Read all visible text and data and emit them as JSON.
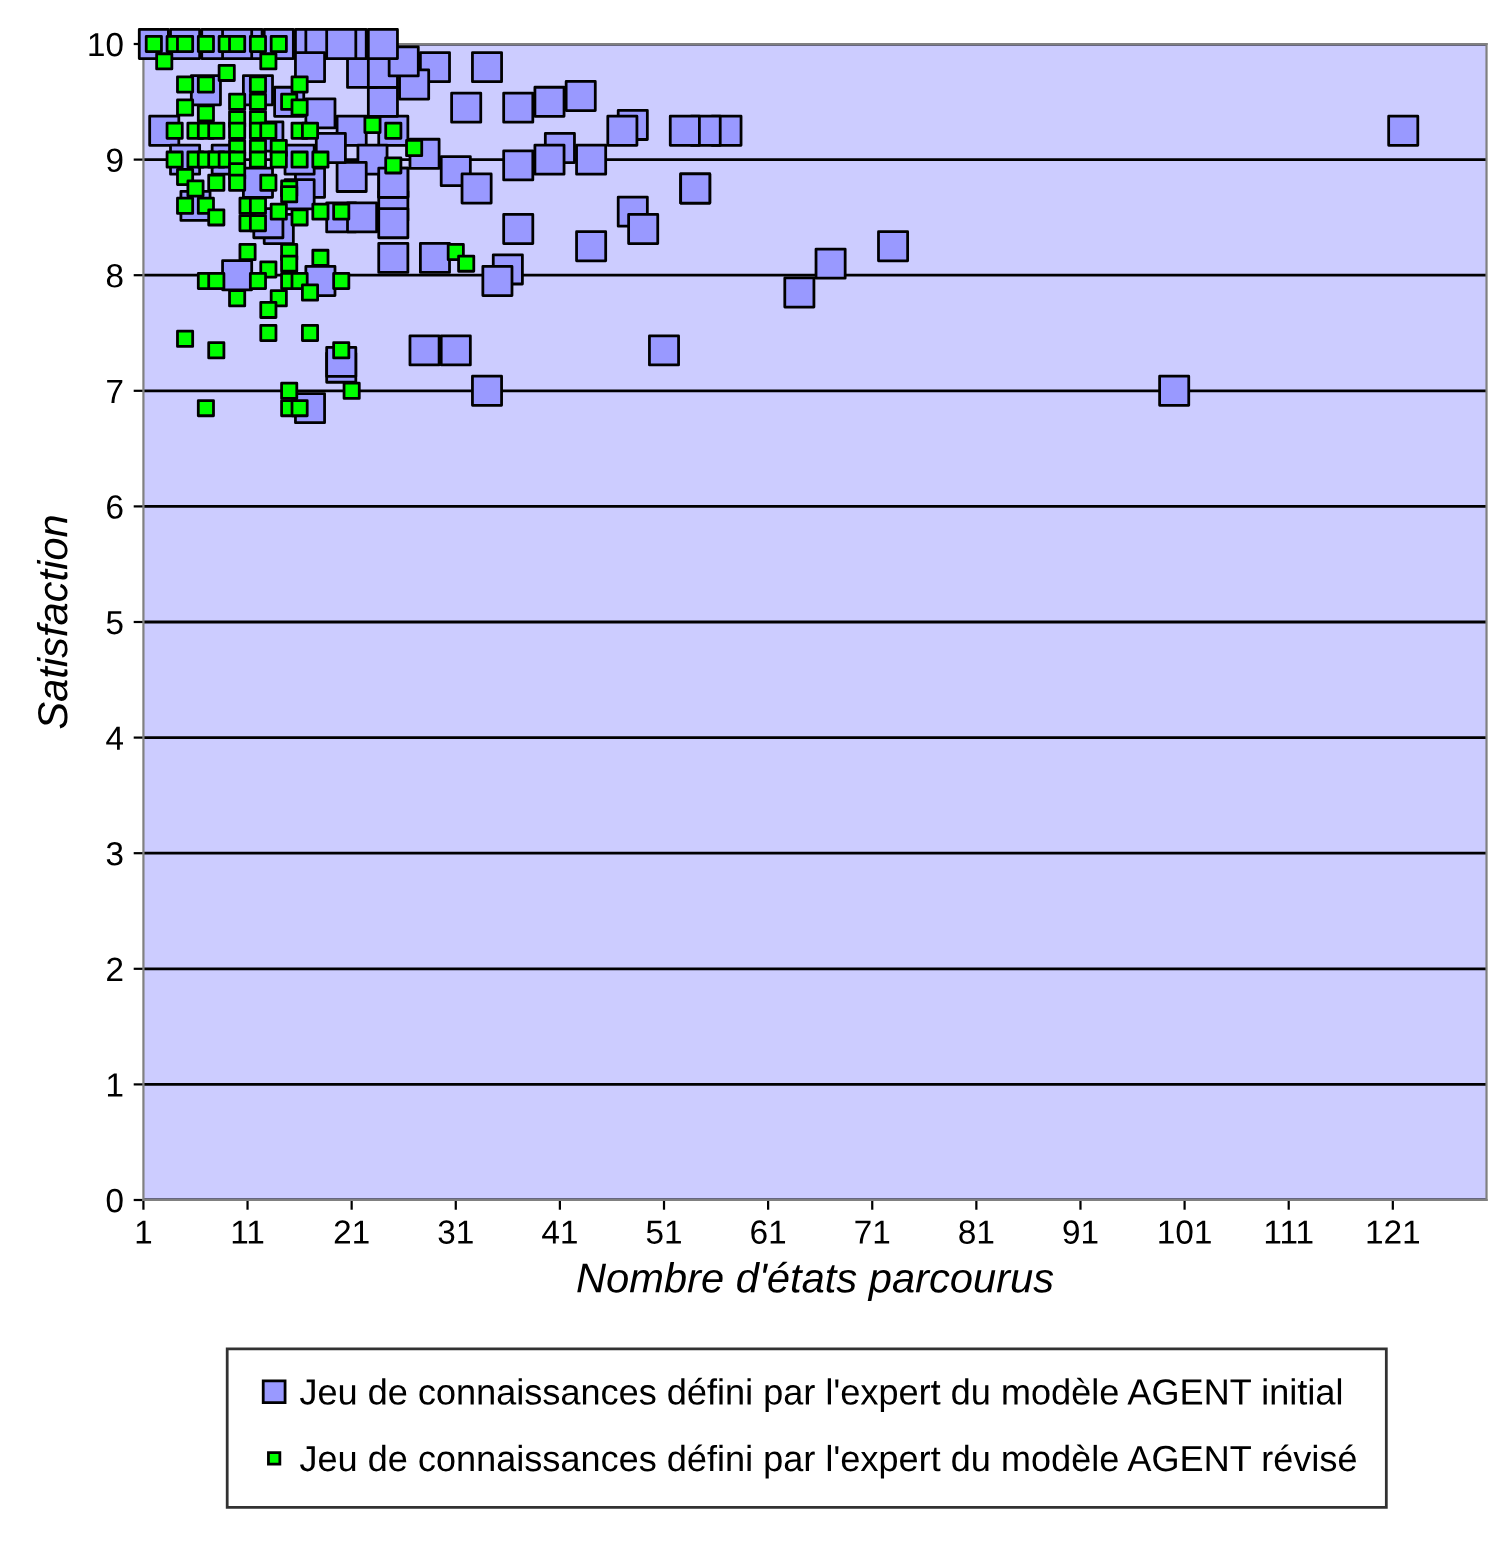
{
  "chart_data": {
    "type": "scatter",
    "xlabel": "Nombre d'états parcourus",
    "ylabel": "Satisfaction",
    "xlim": [
      1,
      130
    ],
    "ylim": [
      0,
      10
    ],
    "xticks": [
      1,
      11,
      21,
      31,
      41,
      51,
      61,
      71,
      81,
      91,
      101,
      111,
      121
    ],
    "yticks": [
      0,
      1,
      2,
      3,
      4,
      5,
      6,
      7,
      8,
      9,
      10
    ],
    "grid": "y",
    "legend": "bottom",
    "marker": "square",
    "series": [
      {
        "name": "Jeu de connaissances défini par l'expert du modèle AGENT initial",
        "color": "#9999ff",
        "x": [
          122,
          100,
          73,
          67,
          64,
          54,
          57,
          55,
          53,
          34,
          29,
          32,
          37,
          40,
          43,
          48,
          47,
          41,
          44,
          40,
          37,
          31,
          33,
          54,
          48,
          49,
          37,
          44,
          36,
          35,
          29,
          25,
          28,
          31,
          51,
          34,
          20,
          25,
          25,
          25,
          25,
          27,
          24,
          22,
          24,
          26,
          21,
          23,
          21,
          20,
          22,
          21,
          24,
          2,
          5,
          8,
          11,
          14,
          17,
          18,
          20,
          17,
          28,
          25,
          17,
          14,
          13,
          10,
          18,
          10,
          20,
          17,
          3,
          5,
          6,
          7,
          9,
          12,
          12,
          13,
          15,
          16,
          18,
          19,
          16
        ],
        "values": [
          9.25,
          7,
          8.25,
          8.1,
          7.85,
          8.75,
          9.25,
          9.25,
          9.25,
          9.8,
          9.8,
          9.45,
          9.45,
          9.5,
          9.55,
          9.3,
          9.25,
          9.1,
          9,
          9,
          8.95,
          8.9,
          8.75,
          8.75,
          8.55,
          8.4,
          8.4,
          8.25,
          8.05,
          7.95,
          8.15,
          8.15,
          7.35,
          7.35,
          7.35,
          7,
          7.2,
          8.6,
          8.45,
          8.8,
          9.25,
          9.65,
          9.5,
          9.75,
          9.75,
          9.85,
          9.25,
          9,
          8.85,
          8.5,
          8.5,
          10,
          10,
          10,
          10,
          10,
          10,
          10,
          10,
          10,
          10,
          9.8,
          9.05,
          8.8,
          8.8,
          8.4,
          8.45,
          8,
          7.95,
          10,
          7.25,
          6.85,
          9.25,
          9,
          8.6,
          9.6,
          9,
          9.6,
          8.8,
          9.2,
          9.5,
          9,
          9.4,
          9.1,
          8.7
        ]
      },
      {
        "name": "Jeu de connaissances défini par l'expert du modèle AGENT révisé",
        "color": "#00ff00",
        "x": [
          2,
          4,
          5,
          7,
          9,
          10,
          12,
          14,
          3,
          13,
          9,
          5,
          7,
          12,
          16,
          5,
          7,
          10,
          12,
          10,
          12,
          15,
          16,
          23,
          4,
          6,
          7,
          8,
          10,
          12,
          13,
          16,
          17,
          25,
          27,
          10,
          12,
          14,
          4,
          6,
          7,
          8,
          9,
          10,
          12,
          14,
          16,
          18,
          25,
          5,
          10,
          10,
          13,
          15,
          8,
          6,
          15,
          5,
          7,
          8,
          11,
          12,
          11,
          12,
          14,
          16,
          18,
          20,
          11,
          15,
          15,
          18,
          13,
          7,
          8,
          12,
          15,
          16,
          20,
          10,
          14,
          17,
          13,
          13,
          17,
          5,
          8,
          20,
          15,
          15,
          16,
          21,
          7,
          31,
          32
        ],
        "values": [
          10,
          10,
          10,
          10,
          10,
          10,
          10,
          10,
          9.85,
          9.85,
          9.75,
          9.65,
          9.65,
          9.65,
          9.65,
          9.45,
          9.4,
          9.5,
          9.5,
          9.35,
          9.35,
          9.5,
          9.45,
          9.3,
          9.25,
          9.25,
          9.25,
          9.25,
          9.25,
          9.25,
          9.25,
          9.25,
          9.25,
          9.25,
          9.1,
          9.1,
          9.1,
          9.1,
          9,
          9,
          9,
          9,
          9,
          9,
          9,
          9,
          9,
          9,
          8.95,
          8.85,
          8.9,
          8.8,
          8.8,
          8.75,
          8.8,
          8.75,
          8.7,
          8.6,
          8.6,
          8.5,
          8.6,
          8.6,
          8.45,
          8.45,
          8.55,
          8.5,
          8.55,
          8.55,
          8.2,
          8.2,
          8.1,
          8.15,
          8.05,
          7.95,
          7.95,
          7.95,
          7.95,
          7.95,
          7.95,
          7.8,
          7.8,
          7.85,
          7.7,
          7.5,
          7.5,
          7.45,
          7.35,
          7.35,
          7,
          6.85,
          6.85,
          7,
          6.85,
          8.2,
          8.1
        ]
      }
    ]
  }
}
